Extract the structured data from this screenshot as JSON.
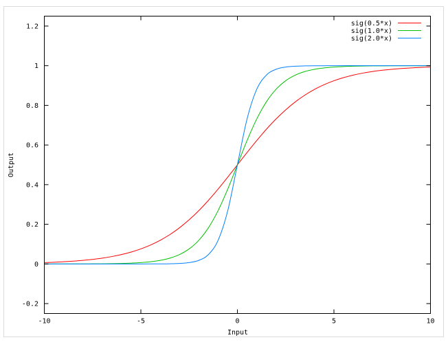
{
  "chart_data": {
    "type": "line",
    "title": "",
    "xlabel": "Input",
    "ylabel": "Output",
    "xlim": [
      -10,
      10
    ],
    "ylim": [
      -0.25,
      1.25
    ],
    "xticks": [
      -10,
      -5,
      0,
      5,
      10
    ],
    "xtick_labels": [
      "-10",
      "-5",
      "0",
      "5",
      "10"
    ],
    "yticks": [
      -0.2,
      0,
      0.2,
      0.4,
      0.6,
      0.8,
      1,
      1.2
    ],
    "ytick_labels": [
      "-0.2",
      "0",
      "0.2",
      "0.4",
      "0.6",
      "0.8",
      "1",
      "1.2"
    ],
    "grid": false,
    "legend_position": "top-right",
    "x": [
      -10,
      -9.5,
      -9,
      -8.5,
      -8,
      -7.5,
      -7,
      -6.5,
      -6,
      -5.5,
      -5,
      -4.5,
      -4,
      -3.5,
      -3,
      -2.5,
      -2,
      -1.5,
      -1,
      -0.5,
      0,
      0.5,
      1,
      1.5,
      2,
      2.5,
      3,
      3.5,
      4,
      4.5,
      5,
      5.5,
      6,
      6.5,
      7,
      7.5,
      8,
      8.5,
      9,
      9.5,
      10
    ],
    "series": [
      {
        "name": "sig(0.5*x)",
        "color": "#ff0000",
        "values": [
          0.0067,
          0.0086,
          0.011,
          0.0141,
          0.018,
          0.023,
          0.0293,
          0.0373,
          0.0474,
          0.0601,
          0.0759,
          0.0953,
          0.1192,
          0.148,
          0.1824,
          0.2227,
          0.2689,
          0.3208,
          0.3775,
          0.4378,
          0.5,
          0.5622,
          0.6225,
          0.6792,
          0.7311,
          0.7773,
          0.8176,
          0.852,
          0.8808,
          0.9047,
          0.9241,
          0.9399,
          0.9526,
          0.9627,
          0.9707,
          0.977,
          0.982,
          0.9859,
          0.989,
          0.9914,
          0.9933
        ]
      },
      {
        "name": "sig(1.0*x)",
        "color": "#00c000",
        "values": [
          0.0,
          0.0001,
          0.0001,
          0.0002,
          0.0003,
          0.0006,
          0.0009,
          0.0015,
          0.0025,
          0.0041,
          0.0067,
          0.011,
          0.018,
          0.0293,
          0.0474,
          0.0759,
          0.1192,
          0.1824,
          0.2689,
          0.3775,
          0.5,
          0.6225,
          0.7311,
          0.8176,
          0.8808,
          0.9241,
          0.9526,
          0.9707,
          0.982,
          0.989,
          0.9933,
          0.9959,
          0.9975,
          0.9985,
          0.9991,
          0.9994,
          0.9997,
          0.9998,
          0.9999,
          0.9999,
          1.0
        ]
      },
      {
        "name": "sig(2.0*x)",
        "color": "#0080ff",
        "values": [
          0,
          0,
          0,
          0,
          0,
          0,
          0,
          0,
          0,
          0,
          0.0,
          0.0001,
          0.0003,
          0.0009,
          0.0025,
          0.0067,
          0.018,
          0.0474,
          0.1192,
          0.2689,
          0.5,
          0.7311,
          0.8808,
          0.9526,
          0.982,
          0.9933,
          0.9975,
          0.9991,
          0.9997,
          0.9999,
          1.0,
          1,
          1,
          1,
          1,
          1,
          1,
          1,
          1,
          1,
          1
        ]
      }
    ]
  }
}
